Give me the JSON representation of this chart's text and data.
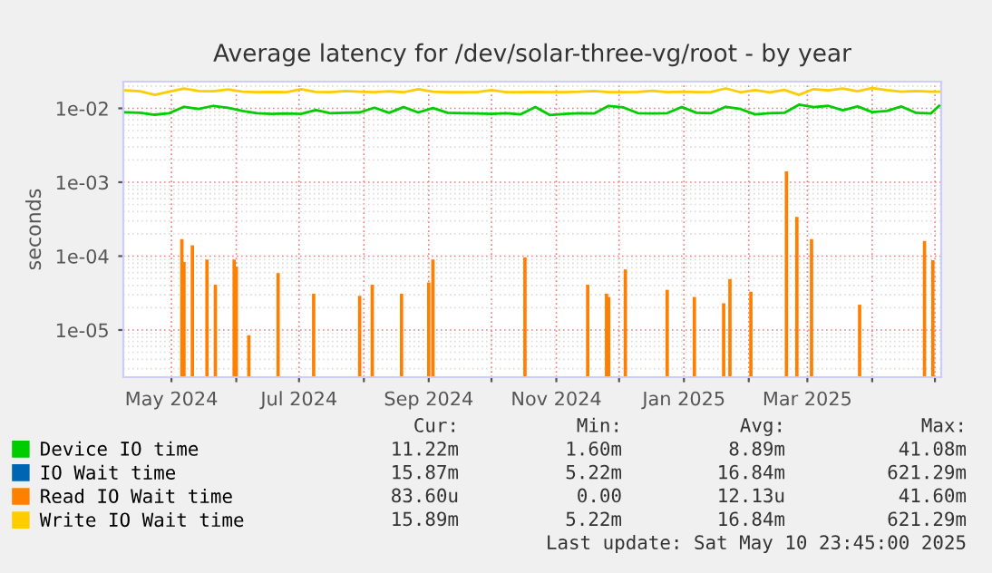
{
  "chart_data": {
    "type": "line",
    "title": "Average latency for /dev/solar-three-vg/root - by year",
    "ylabel": "seconds",
    "log": "y",
    "ylim": [
      2.3e-06,
      0.023
    ],
    "yticks": [
      {
        "value": 1e-05,
        "label": "1e-05"
      },
      {
        "value": 0.0001,
        "label": "1e-04"
      },
      {
        "value": 0.001,
        "label": "1e-03"
      },
      {
        "value": 0.01,
        "label": "1e-02"
      }
    ],
    "xlim": [
      "2024-04-08",
      "2025-05-04"
    ],
    "xticks": [
      {
        "value": "2024-05-01",
        "label": "May 2024"
      },
      {
        "value": "2024-06-01",
        "label": null
      },
      {
        "value": "2024-07-01",
        "label": "Jul 2024"
      },
      {
        "value": "2024-08-01",
        "label": null
      },
      {
        "value": "2024-09-01",
        "label": "Sep 2024"
      },
      {
        "value": "2024-10-01",
        "label": null
      },
      {
        "value": "2024-11-01",
        "label": "Nov 2024"
      },
      {
        "value": "2024-12-01",
        "label": null
      },
      {
        "value": "2025-01-01",
        "label": "Jan 2025"
      },
      {
        "value": "2025-02-01",
        "label": null
      },
      {
        "value": "2025-03-01",
        "label": "Mar 2025"
      },
      {
        "value": "2025-04-01",
        "label": null
      },
      {
        "value": "2025-05-01",
        "label": null
      }
    ],
    "grid": true,
    "legend": "bottom",
    "x": [
      "2024-04-09",
      "2024-04-16",
      "2024-04-23",
      "2024-04-30",
      "2024-05-07",
      "2024-05-14",
      "2024-05-21",
      "2024-05-28",
      "2024-06-04",
      "2024-06-11",
      "2024-06-18",
      "2024-06-25",
      "2024-07-02",
      "2024-07-09",
      "2024-07-16",
      "2024-07-23",
      "2024-07-30",
      "2024-08-06",
      "2024-08-13",
      "2024-08-20",
      "2024-08-27",
      "2024-09-03",
      "2024-09-10",
      "2024-09-17",
      "2024-09-24",
      "2024-10-01",
      "2024-10-08",
      "2024-10-15",
      "2024-10-22",
      "2024-10-29",
      "2024-11-05",
      "2024-11-12",
      "2024-11-19",
      "2024-11-26",
      "2024-12-03",
      "2024-12-10",
      "2024-12-17",
      "2024-12-24",
      "2024-12-31",
      "2025-01-07",
      "2025-01-14",
      "2025-01-21",
      "2025-01-28",
      "2025-02-04",
      "2025-02-11",
      "2025-02-18",
      "2025-02-25",
      "2025-03-04",
      "2025-03-11",
      "2025-03-18",
      "2025-03-25",
      "2025-04-01",
      "2025-04-08",
      "2025-04-15",
      "2025-04-22",
      "2025-04-29",
      "2025-05-03"
    ],
    "series": [
      {
        "name": "Device IO time",
        "color": "#00cc00",
        "values": [
          0.0088,
          0.0087,
          0.0082,
          0.0086,
          0.0105,
          0.0098,
          0.0108,
          0.0102,
          0.0092,
          0.0086,
          0.0084,
          0.0085,
          0.0084,
          0.0095,
          0.0086,
          0.0087,
          0.0088,
          0.0102,
          0.0087,
          0.0104,
          0.0088,
          0.0101,
          0.0087,
          0.0086,
          0.0085,
          0.0084,
          0.0086,
          0.0083,
          0.0104,
          0.0081,
          0.0084,
          0.0086,
          0.0085,
          0.0108,
          0.0103,
          0.0086,
          0.0085,
          0.0086,
          0.0104,
          0.0087,
          0.0086,
          0.0105,
          0.0098,
          0.0083,
          0.0086,
          0.0087,
          0.0112,
          0.0104,
          0.0108,
          0.0094,
          0.0106,
          0.0089,
          0.0092,
          0.0106,
          0.0087,
          0.0085,
          0.0108
        ]
      },
      {
        "name": "IO Wait time",
        "color": "#0066b3",
        "values": [
          null,
          null,
          null,
          null,
          null,
          null,
          null,
          null,
          null,
          null,
          null,
          null,
          null,
          null,
          null,
          null,
          null,
          null,
          null,
          null,
          null,
          null,
          null,
          null,
          null,
          null,
          null,
          null,
          null,
          null,
          null,
          null,
          null,
          null,
          null,
          null,
          null,
          null,
          null,
          null,
          null,
          null,
          null,
          null,
          null,
          null,
          null,
          null,
          null,
          null,
          null,
          null,
          null,
          null,
          null,
          null,
          null
        ]
      },
      {
        "name": "Read IO Wait time",
        "color": "#ff8000",
        "type": "bar",
        "x": [
          "2024-05-06",
          "2024-05-07",
          "2024-05-11",
          "2024-05-18",
          "2024-05-22",
          "2024-05-31",
          "2024-06-01",
          "2024-06-07",
          "2024-06-21",
          "2024-07-08",
          "2024-07-30",
          "2024-08-05",
          "2024-08-19",
          "2024-09-01",
          "2024-09-03",
          "2024-10-17",
          "2024-11-16",
          "2024-11-25",
          "2024-11-26",
          "2024-12-04",
          "2024-12-24",
          "2025-01-06",
          "2025-01-20",
          "2025-01-23",
          "2025-02-02",
          "2025-02-19",
          "2025-02-24",
          "2025-03-03",
          "2025-03-26",
          "2025-04-26",
          "2025-04-30"
        ],
        "values": [
          0.00017,
          8.3e-05,
          0.00014,
          9e-05,
          4.1e-05,
          9e-05,
          7.2e-05,
          8.5e-06,
          5.9e-05,
          3.1e-05,
          2.9e-05,
          4.1e-05,
          3.1e-05,
          4.4e-05,
          9e-05,
          9.6e-05,
          4.1e-05,
          3.1e-05,
          2.8e-05,
          6.6e-05,
          3.5e-05,
          2.8e-05,
          2.3e-05,
          4.9e-05,
          3.3e-05,
          0.0014,
          0.00034,
          0.00017,
          2.2e-05,
          0.00016,
          8.8e-05
        ]
      },
      {
        "name": "Write IO Wait time",
        "color": "#ffcc00",
        "values": [
          0.0175,
          0.017,
          0.0152,
          0.0168,
          0.0185,
          0.0172,
          0.017,
          0.018,
          0.0168,
          0.0166,
          0.0167,
          0.0166,
          0.0182,
          0.0167,
          0.0166,
          0.0172,
          0.0168,
          0.0166,
          0.017,
          0.0165,
          0.0182,
          0.0168,
          0.0165,
          0.0165,
          0.0166,
          0.0176,
          0.0166,
          0.0165,
          0.0167,
          0.0166,
          0.0166,
          0.0168,
          0.0172,
          0.0166,
          0.0166,
          0.0167,
          0.0173,
          0.0166,
          0.0168,
          0.0166,
          0.0167,
          0.0186,
          0.0165,
          0.0176,
          0.0164,
          0.0178,
          0.0152,
          0.0182,
          0.0175,
          0.0186,
          0.017,
          0.0188,
          0.0176,
          0.0168,
          0.0172,
          0.0168,
          0.0168
        ]
      }
    ],
    "annotations": [
      "Cur:",
      "Min:",
      "Avg:",
      "Max:",
      "11.22m",
      "1.60m",
      "8.89m",
      "41.08m",
      "15.87m",
      "5.22m",
      "16.84m",
      "621.29m",
      "83.60u",
      "0.00",
      "12.13u",
      "41.60m",
      "15.89m",
      "5.22m",
      "16.84m",
      "621.29m",
      "Last update: Sat May 10 23:45:00 2025"
    ]
  }
}
